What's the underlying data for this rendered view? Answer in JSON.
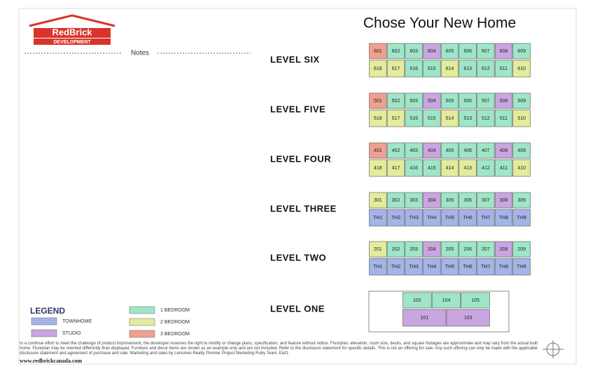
{
  "header": {
    "brand": "RedBrick",
    "brand_sub": "DEVELOPMENT",
    "title": "Chose Your New Home",
    "notes": "Notes"
  },
  "levels": [
    {
      "name": "LEVEL SIX",
      "top": [
        {
          "label": "601",
          "color": "#f0a090"
        },
        {
          "label": "602",
          "color": "#9fe6c8"
        },
        {
          "label": "603",
          "color": "#9fe6c8"
        },
        {
          "label": "604",
          "color": "#c9a6e0"
        },
        {
          "label": "605",
          "color": "#9fe6c8"
        },
        {
          "label": "606",
          "color": "#9fe6c8"
        },
        {
          "label": "607",
          "color": "#9fe6c8"
        },
        {
          "label": "608",
          "color": "#c9a6e0"
        },
        {
          "label": "609",
          "color": "#9fe6c8"
        }
      ],
      "bottom": [
        {
          "label": "618",
          "color": "#e2ec9c"
        },
        {
          "label": "617",
          "color": "#e2ec9c"
        },
        {
          "label": "616",
          "color": "#9fe6c8"
        },
        {
          "label": "615",
          "color": "#9fe6c8"
        },
        {
          "label": "614",
          "color": "#e2ec9c"
        },
        {
          "label": "613",
          "color": "#9fe6c8"
        },
        {
          "label": "612",
          "color": "#9fe6c8"
        },
        {
          "label": "611",
          "color": "#9fe6c8"
        },
        {
          "label": "610",
          "color": "#e2ec9c"
        }
      ]
    },
    {
      "name": "LEVEL FIVE",
      "top": [
        {
          "label": "501",
          "color": "#f0a090"
        },
        {
          "label": "502",
          "color": "#9fe6c8"
        },
        {
          "label": "503",
          "color": "#9fe6c8"
        },
        {
          "label": "504",
          "color": "#c9a6e0"
        },
        {
          "label": "505",
          "color": "#9fe6c8"
        },
        {
          "label": "506",
          "color": "#9fe6c8"
        },
        {
          "label": "507",
          "color": "#9fe6c8"
        },
        {
          "label": "508",
          "color": "#c9a6e0"
        },
        {
          "label": "509",
          "color": "#9fe6c8"
        }
      ],
      "bottom": [
        {
          "label": "518",
          "color": "#e2ec9c"
        },
        {
          "label": "517",
          "color": "#e2ec9c"
        },
        {
          "label": "516",
          "color": "#9fe6c8"
        },
        {
          "label": "515",
          "color": "#9fe6c8"
        },
        {
          "label": "514",
          "color": "#e2ec9c"
        },
        {
          "label": "513",
          "color": "#9fe6c8"
        },
        {
          "label": "512",
          "color": "#9fe6c8"
        },
        {
          "label": "511",
          "color": "#9fe6c8"
        },
        {
          "label": "510",
          "color": "#e2ec9c"
        }
      ]
    },
    {
      "name": "LEVEL FOUR",
      "top": [
        {
          "label": "401",
          "color": "#f0a090"
        },
        {
          "label": "402",
          "color": "#9fe6c8"
        },
        {
          "label": "403",
          "color": "#9fe6c8"
        },
        {
          "label": "404",
          "color": "#c9a6e0"
        },
        {
          "label": "405",
          "color": "#9fe6c8"
        },
        {
          "label": "406",
          "color": "#9fe6c8"
        },
        {
          "label": "407",
          "color": "#9fe6c8"
        },
        {
          "label": "408",
          "color": "#c9a6e0"
        },
        {
          "label": "409",
          "color": "#9fe6c8"
        }
      ],
      "bottom": [
        {
          "label": "418",
          "color": "#e2ec9c"
        },
        {
          "label": "417",
          "color": "#e2ec9c"
        },
        {
          "label": "416",
          "color": "#9fe6c8"
        },
        {
          "label": "415",
          "color": "#9fe6c8"
        },
        {
          "label": "414",
          "color": "#e2ec9c"
        },
        {
          "label": "413",
          "color": "#e2ec9c"
        },
        {
          "label": "412",
          "color": "#9fe6c8"
        },
        {
          "label": "411",
          "color": "#9fe6c8"
        },
        {
          "label": "410",
          "color": "#e2ec9c"
        }
      ]
    },
    {
      "name": "LEVEL THREE",
      "top": [
        {
          "label": "301",
          "color": "#e2ec9c"
        },
        {
          "label": "302",
          "color": "#9fe6c8"
        },
        {
          "label": "303",
          "color": "#9fe6c8"
        },
        {
          "label": "304",
          "color": "#c9a6e0"
        },
        {
          "label": "305",
          "color": "#9fe6c8"
        },
        {
          "label": "306",
          "color": "#9fe6c8"
        },
        {
          "label": "307",
          "color": "#9fe6c8"
        },
        {
          "label": "308",
          "color": "#c9a6e0"
        },
        {
          "label": "309",
          "color": "#9fe6c8"
        }
      ],
      "bottom": [
        {
          "label": "TH1",
          "color": "#a4b4e6"
        },
        {
          "label": "TH2",
          "color": "#a4b4e6"
        },
        {
          "label": "TH3",
          "color": "#a4b4e6"
        },
        {
          "label": "TH4",
          "color": "#a4b4e6"
        },
        {
          "label": "TH5",
          "color": "#a4b4e6"
        },
        {
          "label": "TH6",
          "color": "#a4b4e6"
        },
        {
          "label": "TH7",
          "color": "#a4b4e6"
        },
        {
          "label": "TH8",
          "color": "#a4b4e6"
        },
        {
          "label": "TH9",
          "color": "#a4b4e6"
        }
      ]
    },
    {
      "name": "LEVEL TWO",
      "top": [
        {
          "label": "201",
          "color": "#e2ec9c"
        },
        {
          "label": "202",
          "color": "#9fe6c8"
        },
        {
          "label": "203",
          "color": "#9fe6c8"
        },
        {
          "label": "204",
          "color": "#c9a6e0"
        },
        {
          "label": "205",
          "color": "#9fe6c8"
        },
        {
          "label": "206",
          "color": "#9fe6c8"
        },
        {
          "label": "207",
          "color": "#9fe6c8"
        },
        {
          "label": "208",
          "color": "#c9a6e0"
        },
        {
          "label": "209",
          "color": "#9fe6c8"
        }
      ],
      "bottom": [
        {
          "label": "TH1",
          "color": "#a4b4e6"
        },
        {
          "label": "TH2",
          "color": "#a4b4e6"
        },
        {
          "label": "TH3",
          "color": "#a4b4e6"
        },
        {
          "label": "TH4",
          "color": "#a4b4e6"
        },
        {
          "label": "TH5",
          "color": "#a4b4e6"
        },
        {
          "label": "TH6",
          "color": "#a4b4e6"
        },
        {
          "label": "TH7",
          "color": "#a4b4e6"
        },
        {
          "label": "TH8",
          "color": "#a4b4e6"
        },
        {
          "label": "TH9",
          "color": "#a4b4e6"
        }
      ]
    },
    {
      "name": "LEVEL ONE",
      "top": [
        {
          "label": "102",
          "color": "#9fe6c8"
        },
        {
          "label": "104",
          "color": "#9fe6c8"
        },
        {
          "label": "105",
          "color": "#9fe6c8"
        }
      ],
      "bottom": [
        {
          "label": "101",
          "color": "#c9a6e0"
        },
        {
          "label": "103",
          "color": "#c9a6e0"
        }
      ]
    }
  ],
  "legend": {
    "title": "LEGEND",
    "items": [
      {
        "label": "TOWNHOME",
        "color": "#a4b4e6"
      },
      {
        "label": "STUDIO",
        "color": "#c9a6e0"
      },
      {
        "label": "1 BEDROOM",
        "color": "#9fe6c8"
      },
      {
        "label": "2 BEDROOM",
        "color": "#e2ec9c"
      },
      {
        "label": "3 BEDROOM",
        "color": "#f0a090"
      }
    ]
  },
  "footer": {
    "disclaimer": "In a continue effort to meet the challenge of product improvement, the developer reserves the right to modify or change plans, specification, and feature without notice. Floorplan, elevation, room size, decks, and square footages are approximate and may vary from the actual built home. Floorplan may be oriented differently than displayed. Furniture and decor items are shown as an example only and are not included. Refer to the disclosure statement for specific details. This is not an offering for sale. Any such offering can only be made with the applicable disclosure statement and agreement of purchase and sale. Marketing and sales by Lenomes Realty Premier Project Marketing Ruby Team. E&O.",
    "website": "www.redbrickcanada.com"
  }
}
